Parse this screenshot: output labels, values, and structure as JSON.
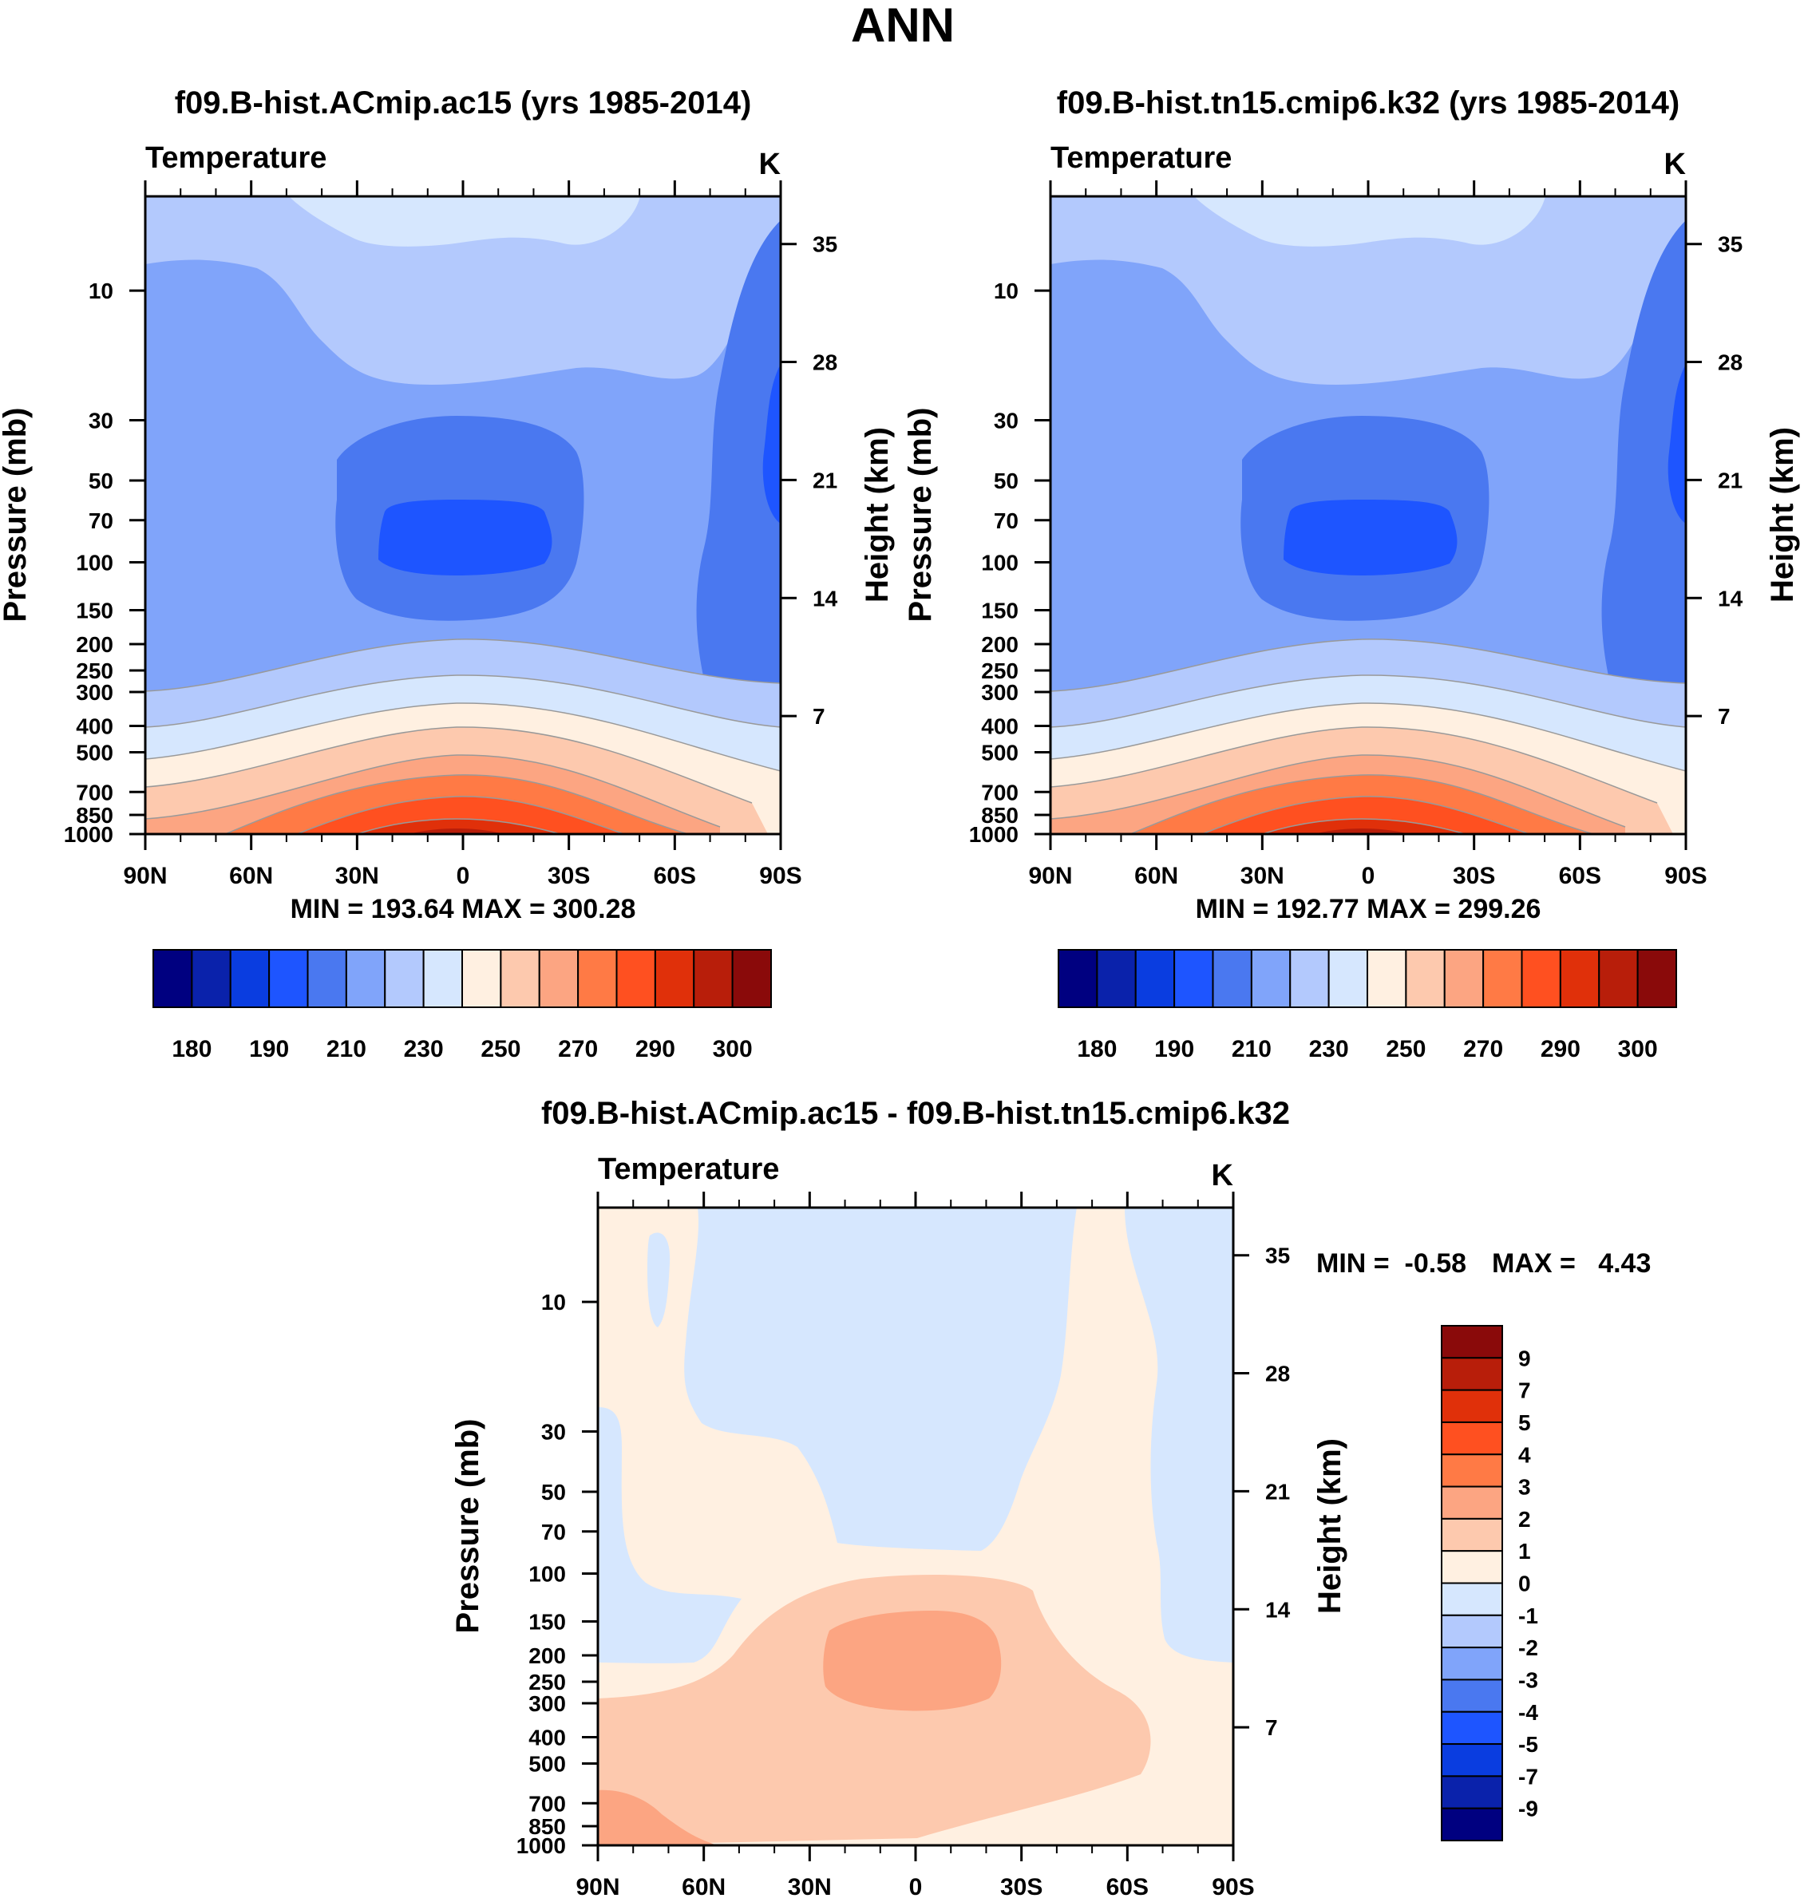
{
  "figure_title": "ANN",
  "colors": {
    "temp_levels": [
      "#000080",
      "#0a22ab",
      "#0a3de0",
      "#1e55ff",
      "#4a78f0",
      "#80a4fa",
      "#b3c9fd",
      "#d6e7fe",
      "#fff0e1",
      "#fdc9ae",
      "#fca582",
      "#ff7a45",
      "#ff5020",
      "#e0300a",
      "#b81e0a",
      "#8a0a0a"
    ],
    "diff_levels": [
      "#000080",
      "#0a22ab",
      "#0a3de0",
      "#1e55ff",
      "#4a78f0",
      "#80a4fa",
      "#b3c9fd",
      "#d6e7fe",
      "#fff0e1",
      "#fdc9ae",
      "#fca582",
      "#ff7a45",
      "#ff5020",
      "#e0300a",
      "#b81e0a",
      "#8a0a0a"
    ]
  },
  "chart_data": [
    {
      "type": "contour",
      "title": "f09.B-hist.ACmip.ac15 (yrs 1985-2014)",
      "left_string": "Temperature",
      "units": "K",
      "xlabel": "",
      "ylabel": "Pressure (mb)",
      "ylabel_right": "Height (km)",
      "x_ticks": [
        "90N",
        "60N",
        "30N",
        "0",
        "30S",
        "60S",
        "90S"
      ],
      "y_ticks": [
        10,
        30,
        50,
        70,
        100,
        150,
        200,
        250,
        300,
        400,
        500,
        700,
        850,
        1000
      ],
      "y_right_ticks": [
        35,
        28,
        21,
        14,
        7
      ],
      "stats": "MIN = 193.64  MAX = 300.28",
      "colorbar_labels": [
        "180",
        "190",
        "210",
        "230",
        "250",
        "270",
        "290",
        "300"
      ],
      "region_values_K": [
        235,
        225,
        215,
        205,
        200,
        245,
        255,
        265,
        275,
        285,
        295,
        300
      ]
    },
    {
      "type": "contour",
      "title": "f09.B-hist.tn15.cmip6.k32 (yrs 1985-2014)",
      "left_string": "Temperature",
      "units": "K",
      "xlabel": "",
      "ylabel": "Pressure (mb)",
      "ylabel_right": "Height (km)",
      "x_ticks": [
        "90N",
        "60N",
        "30N",
        "0",
        "30S",
        "60S",
        "90S"
      ],
      "y_ticks": [
        10,
        30,
        50,
        70,
        100,
        150,
        200,
        250,
        300,
        400,
        500,
        700,
        850,
        1000
      ],
      "y_right_ticks": [
        35,
        28,
        21,
        14,
        7
      ],
      "stats": "MIN = 192.77  MAX = 299.26",
      "colorbar_labels": [
        "180",
        "190",
        "210",
        "230",
        "250",
        "270",
        "290",
        "300"
      ]
    },
    {
      "type": "contour",
      "title": "f09.B-hist.ACmip.ac15 - f09.B-hist.tn15.cmip6.k32",
      "left_string": "Temperature",
      "units": "K",
      "xlabel": "",
      "ylabel": "Pressure (mb)",
      "ylabel_right": "Height (km)",
      "x_ticks": [
        "90N",
        "60N",
        "30N",
        "0",
        "30S",
        "60S",
        "90S"
      ],
      "y_ticks": [
        10,
        30,
        50,
        70,
        100,
        150,
        200,
        250,
        300,
        400,
        500,
        700,
        850,
        1000
      ],
      "y_right_ticks": [
        35,
        28,
        21,
        14,
        7
      ],
      "stats_min": "MIN =  -0.58",
      "stats_max": "MAX =   4.43",
      "colorbar_labels": [
        "9",
        "7",
        "5",
        "4",
        "3",
        "2",
        "1",
        "0",
        "-1",
        "-2",
        "-3",
        "-4",
        "-5",
        "-7",
        "-9"
      ],
      "region_values_K": [
        -0.5,
        0.5,
        1.5,
        2.5
      ]
    }
  ]
}
